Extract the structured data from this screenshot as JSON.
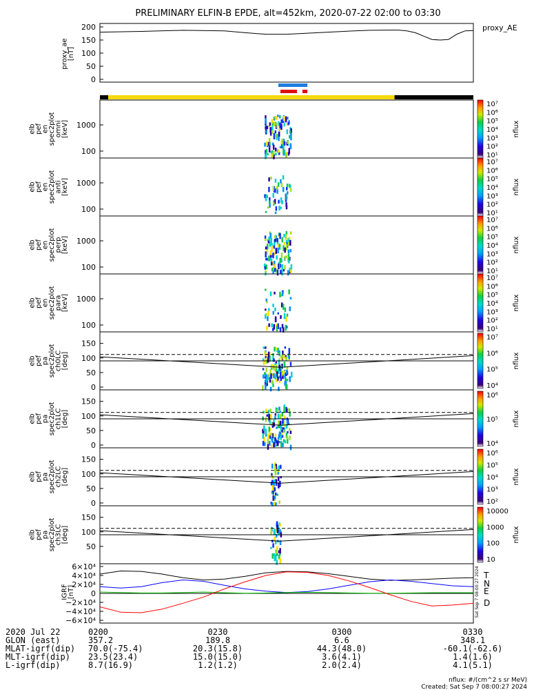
{
  "title": "PRELIMINARY ELFIN-B EPDE, alt=452km, 2020-07-22 02:00 to 03:30",
  "colors": {
    "frame": "#000000",
    "status_yellow": "#f5d90a",
    "status_black": "#000000",
    "bar_blue": "#1e7de0",
    "bar_red": "#e01010",
    "T": "#000000",
    "N": "#0000ff",
    "E": "#00c000",
    "D": "#ff0000"
  },
  "status_bar": {
    "segments": [
      {
        "from": 0,
        "to": 2.0,
        "color": "black"
      },
      {
        "from": 2.0,
        "to": 71.0,
        "color": "yellow"
      },
      {
        "from": 71.0,
        "to": 90,
        "color": "black"
      }
    ]
  },
  "science_bars": [
    {
      "color": "blue",
      "from": 43.0,
      "to": 50.0
    },
    {
      "color": "red",
      "from": 43.5,
      "to": 47.5
    },
    {
      "color": "red",
      "from": 48.8,
      "to": 50.0
    }
  ],
  "panels": {
    "proxy_ae": {
      "ylabel": [
        "proxy_ae",
        "[nT]"
      ],
      "side_label": "proxy_AE",
      "yticks": [
        "200",
        "150",
        "100",
        "50",
        "0"
      ]
    },
    "energy": [
      {
        "id": "omni",
        "ylabel": [
          "elb",
          "pef",
          "en",
          "spec2plot",
          "omni",
          "[keV]"
        ],
        "yticks": [
          "1000",
          "100"
        ]
      },
      {
        "id": "anti",
        "ylabel": [
          "elb",
          "pef",
          "en",
          "spec2plot",
          "anti",
          "[keV]"
        ],
        "yticks": [
          "1000",
          "100"
        ]
      },
      {
        "id": "perp",
        "ylabel": [
          "elb",
          "pef",
          "en",
          "spec2plot",
          "perp",
          "[keV]"
        ],
        "yticks": [
          "1000",
          "100"
        ]
      },
      {
        "id": "para",
        "ylabel": [
          "elb",
          "pef",
          "en",
          "spec2plot",
          "para",
          "[keV]"
        ],
        "yticks": [
          "1000",
          "100"
        ]
      }
    ],
    "pitch": [
      {
        "id": "ch0LC",
        "ylabel": [
          "elb",
          "pef",
          "pa",
          "spec2plot",
          "ch0LC",
          "[deg]"
        ],
        "yticks": [
          "150",
          "100",
          "50",
          "0"
        ]
      },
      {
        "id": "ch1LC",
        "ylabel": [
          "elb",
          "pef",
          "pa",
          "spec2plot",
          "ch1LC",
          "[deg]"
        ],
        "yticks": [
          "150",
          "100",
          "50",
          "0"
        ]
      },
      {
        "id": "ch2LC",
        "ylabel": [
          "elb",
          "pef",
          "pa",
          "spec2plot",
          "ch2LC",
          "[deg]"
        ],
        "yticks": [
          "150",
          "100",
          "50",
          "0"
        ]
      },
      {
        "id": "ch3LC",
        "ylabel": [
          "elb",
          "pef",
          "pa",
          "spec2plot",
          "ch3LC",
          "[deg]"
        ],
        "yticks": [
          "150",
          "100",
          "50"
        ]
      }
    ],
    "igrf": {
      "ylabel": [
        "IGRF",
        "[nT]"
      ],
      "yticks": [
        "6×10⁴",
        "4×10⁴",
        "2×10⁴",
        "0",
        "−2×10⁴",
        "−4×10⁴",
        "−6×10⁴"
      ],
      "legend": [
        "T",
        "N",
        "E",
        "D"
      ],
      "side_note": "Sat Sep 7 08:00:27 2024"
    }
  },
  "colorbars": {
    "energy_labels": [
      "10⁷",
      "10⁶",
      "10⁵",
      "10⁴",
      "10³",
      "10²",
      "10¹"
    ],
    "ch0_labels": [
      "10⁷",
      "10⁶",
      "10⁵",
      "10⁴"
    ],
    "ch1_labels": [
      "10⁶",
      "10⁵",
      "10⁴"
    ],
    "ch2_labels": [
      "10⁶",
      "10⁵",
      "10⁴",
      "10³",
      "10²"
    ],
    "ch3_labels": [
      "10000",
      "1000",
      "100",
      "10"
    ],
    "unit": "nflux"
  },
  "footer": {
    "rows": [
      {
        "label": "2020 Jul 22",
        "values": [
          "0200",
          "0230",
          "0300",
          "0330"
        ]
      },
      {
        "label": "GLON (east)",
        "values": [
          "357.2",
          "189.8",
          "6.6",
          "348.1"
        ]
      },
      {
        "label": "MLAT-igrf(dip)",
        "values": [
          "70.0(-75.4)",
          "20.3(15.8)",
          "44.3(48.0)",
          "-60.1(-62.6)"
        ]
      },
      {
        "label": "MLT-igrf(dip)",
        "values": [
          "23.5(23.4)",
          "15.0(15.0)",
          "3.6(4.1)",
          "1.4(1.6)"
        ]
      },
      {
        "label": "L-igrf(dip)",
        "values": [
          "8.7(16.9)",
          "1.2(1.2)",
          "2.0(2.4)",
          "4.1(5.1)"
        ]
      }
    ],
    "nflux_note": "nflux: #/(cm^2 s sr MeV)",
    "created": "Created: Sat Sep  7 08:00:27 2024"
  },
  "chart_data": {
    "type": "line",
    "x_unit": "minutes after 2020-07-22 02:00 UT",
    "xlim": [
      0,
      90
    ],
    "proxy_ae": {
      "x": [
        0,
        10,
        20,
        30,
        35,
        40,
        45,
        50,
        55,
        60,
        65,
        70,
        72,
        74,
        76,
        78,
        80,
        82,
        84,
        86,
        88,
        90
      ],
      "y": [
        180,
        183,
        187,
        185,
        178,
        172,
        172,
        176,
        180,
        184,
        187,
        188,
        188,
        185,
        178,
        165,
        152,
        150,
        152,
        172,
        185,
        186
      ],
      "ylim": [
        0,
        200
      ]
    },
    "pitch_reference": {
      "solid_x": [
        0,
        43.5,
        90
      ],
      "solid_y": [
        104,
        68,
        108
      ],
      "dashed_x": [
        0,
        90
      ],
      "dashed_y": [
        112,
        112
      ],
      "hline": 90,
      "ylim": [
        0,
        180
      ]
    },
    "igrf": {
      "x": [
        0,
        5,
        10,
        15,
        20,
        25,
        30,
        35,
        40,
        45,
        50,
        55,
        60,
        65,
        70,
        75,
        80,
        85,
        90
      ],
      "T": [
        43000,
        50000,
        49000,
        43000,
        35000,
        30000,
        32000,
        38000,
        46000,
        49000,
        48000,
        44000,
        38000,
        32000,
        29000,
        30000,
        32000,
        34000,
        35000
      ],
      "N": [
        15000,
        12000,
        15000,
        24000,
        30000,
        27000,
        18000,
        10000,
        5000,
        2000,
        4000,
        10000,
        18000,
        26000,
        30000,
        27000,
        22000,
        17000,
        15000
      ],
      "E": [
        3000,
        2000,
        1000,
        1000,
        2000,
        3000,
        1500,
        500,
        1000,
        2000,
        2500,
        2000,
        1000,
        500,
        500,
        1000,
        1500,
        1500,
        1500
      ],
      "D": [
        -30000,
        -42000,
        -43000,
        -35000,
        -22000,
        -8000,
        10000,
        26000,
        40000,
        48000,
        47000,
        40000,
        28000,
        13000,
        -3000,
        -18000,
        -28000,
        -26000,
        -22000
      ],
      "ylim": [
        -60000,
        60000
      ]
    },
    "spectrogram_activity_minutes": [
      39,
      46
    ]
  }
}
